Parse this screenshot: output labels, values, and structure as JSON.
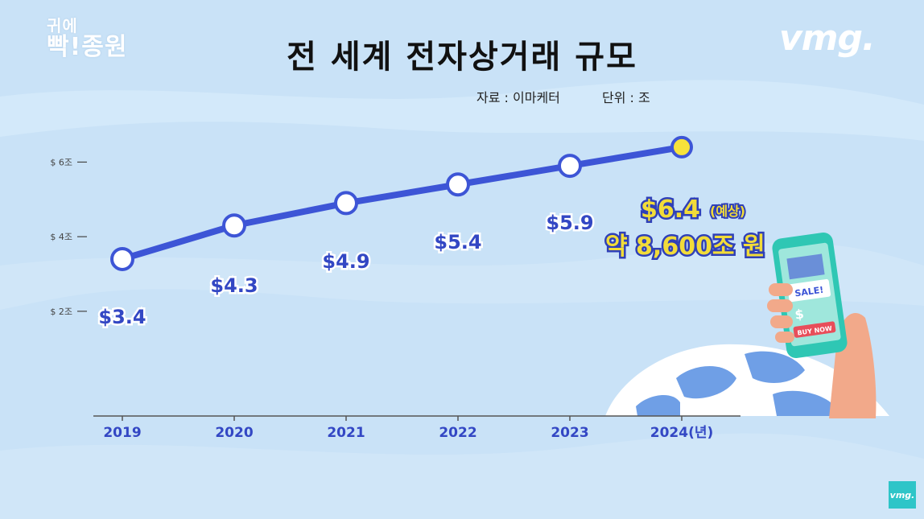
{
  "branding": {
    "show_line1": "귀에",
    "show_line2": "빡!종원",
    "channel_logo": "vmg.",
    "corner_badge": "vmg."
  },
  "title": "전 세계 전자상거래 규모",
  "source": "자료 : 이마케터",
  "unit": "단위 : 조",
  "colors": {
    "line": "#3d55d6",
    "point_fill": "#ffffff",
    "forecast_fill": "#f7e23a",
    "label": "#3347c4",
    "highlight": "#f2dc39"
  },
  "chart_data": {
    "type": "line",
    "categories": [
      "2019",
      "2020",
      "2021",
      "2022",
      "2023",
      "2024(년)"
    ],
    "values": [
      3.4,
      4.3,
      4.9,
      5.4,
      5.9,
      6.4
    ],
    "data_labels": [
      "$3.4",
      "$4.3",
      "$4.9",
      "$5.4",
      "$5.9",
      "$6.4"
    ],
    "forecast_note": "(예상)",
    "forecast_conversion": "약 8,600조 원",
    "y_ticks": [
      {
        "value": 6,
        "label": "$ 6조"
      },
      {
        "value": 4,
        "label": "$ 4조"
      },
      {
        "value": 2,
        "label": "$ 2조"
      }
    ],
    "ylim": [
      0,
      7
    ],
    "grid": false,
    "legend": "none"
  },
  "illustration": {
    "screen_text": "SALE!",
    "button_text": "BUY NOW",
    "currency_symbol": "$"
  }
}
